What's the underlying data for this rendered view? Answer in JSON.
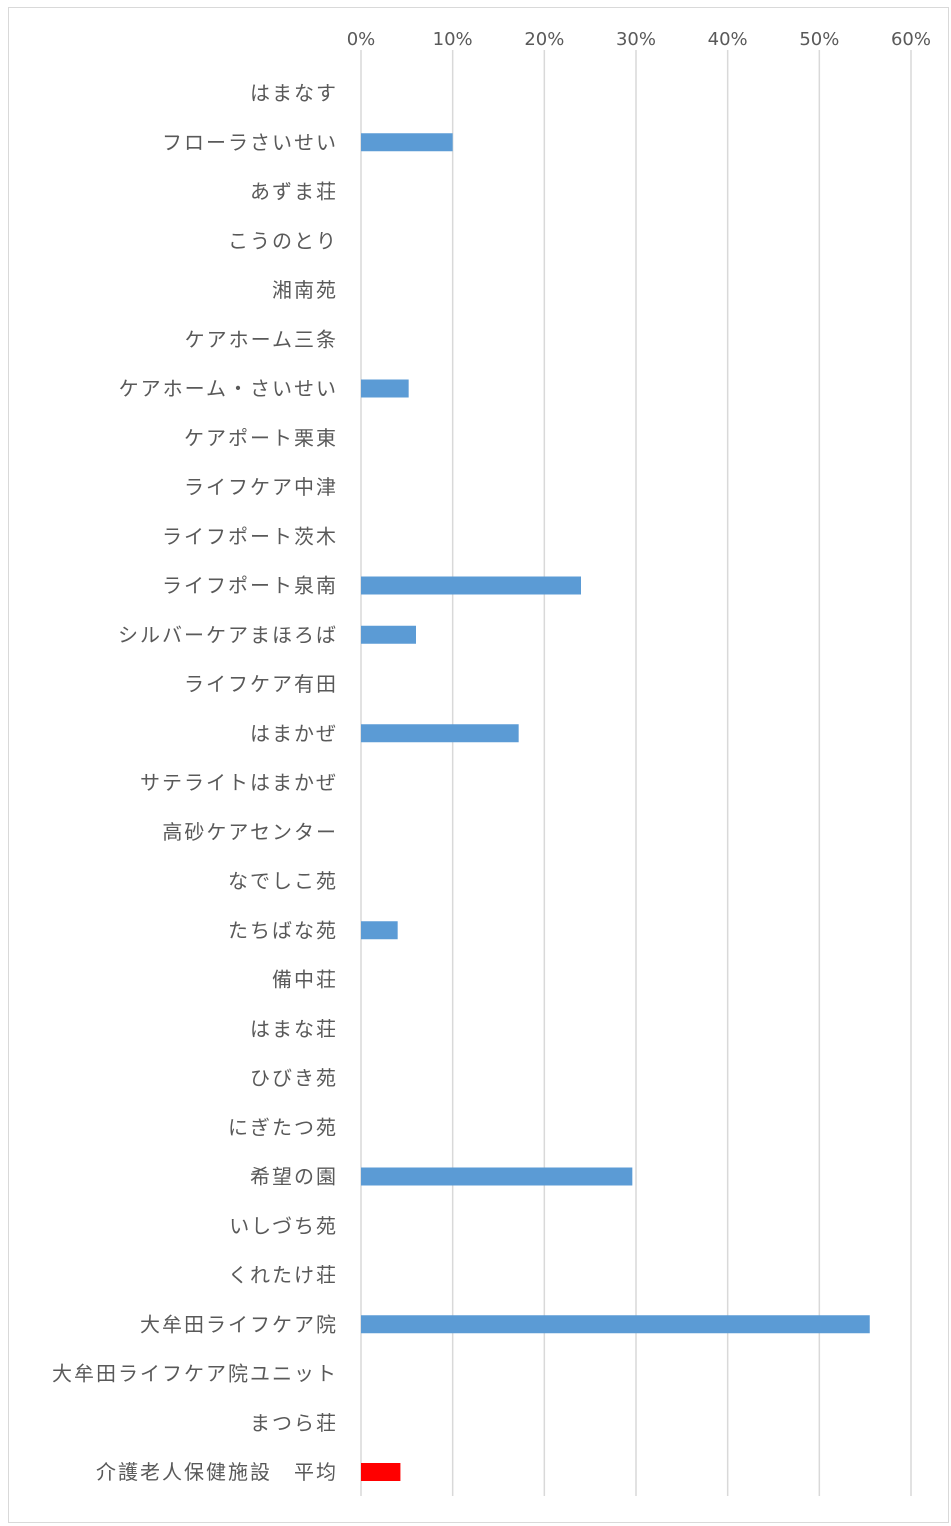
{
  "chart_data": {
    "type": "bar",
    "orientation": "horizontal",
    "title": "",
    "xlabel": "",
    "ylabel": "",
    "xlim": [
      0,
      0.6
    ],
    "x_ticks": [
      "0%",
      "10%",
      "20%",
      "30%",
      "40%",
      "50%",
      "60%"
    ],
    "x_tick_values": [
      0,
      0.1,
      0.2,
      0.3,
      0.4,
      0.5,
      0.6
    ],
    "grid": true,
    "legend": "none",
    "colors": {
      "series": "#5b9bd5",
      "highlight": "#ff0000",
      "grid": "#d9d9d9",
      "text": "#595959"
    },
    "categories": [
      "はまなす",
      "フローラさいせい",
      "あずま荘",
      "こうのとり",
      "湘南苑",
      "ケアホーム三条",
      "ケアホーム・さいせい",
      "ケアポート栗東",
      "ライフケア中津",
      "ライフポート茨木",
      "ライフポート泉南",
      "シルバーケアまほろば",
      "ライフケア有田",
      "はまかぜ",
      "サテライトはまかぜ",
      "高砂ケアセンター",
      "なでしこ苑",
      "たちばな苑",
      "備中荘",
      "はまな荘",
      "ひびき苑",
      "にぎたつ苑",
      "希望の園",
      "いしづち苑",
      "くれたけ荘",
      "大牟田ライフケア院",
      "大牟田ライフケア院ユニット",
      "まつら荘",
      "介護老人保健施設　平均"
    ],
    "values": [
      0,
      0.1,
      0,
      0,
      0,
      0,
      0.052,
      0,
      0,
      0,
      0.24,
      0.06,
      0,
      0.172,
      0,
      0,
      0,
      0.04,
      0,
      0,
      0,
      0,
      0.296,
      0,
      0,
      0.555,
      0,
      0,
      0.043
    ],
    "highlight_index": 28
  }
}
